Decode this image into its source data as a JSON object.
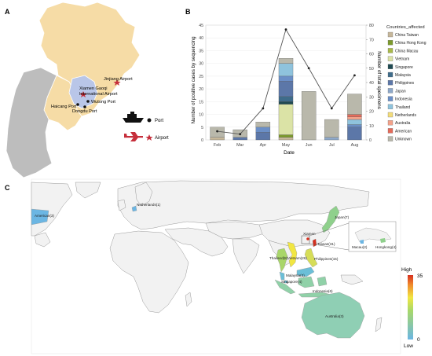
{
  "panel_labels": {
    "a": "A",
    "b": "B",
    "c": "C"
  },
  "panel_a": {
    "places": [
      "Jinjiang Airport",
      "Xiamen Gaoqi",
      "International Airport",
      "Haicang Port",
      "Wutong Port",
      "Dongdu Port"
    ],
    "legend": {
      "port": "Port",
      "airport": "Airport"
    },
    "colors": {
      "mainland": "#f6dca6",
      "xiamen": "#b9c6e8",
      "neighbor": "#bdbdbd"
    }
  },
  "chart_data": {
    "type": "bar",
    "categories": [
      "Feb",
      "Mar",
      "Apr",
      "May",
      "Jun",
      "Jul",
      "Aug"
    ],
    "xlabel": "Date",
    "ylabel": "Number of positive cases by sequencing",
    "y2label": "Number of total specimens",
    "ylim": [
      0,
      45
    ],
    "y2lim": [
      0,
      80
    ],
    "yticks": [
      0,
      5,
      10,
      15,
      20,
      25,
      30,
      35,
      40,
      45
    ],
    "y2ticks": [
      0,
      10,
      20,
      30,
      40,
      50,
      60,
      70,
      80
    ],
    "legend_title": "Countries_affected",
    "legend_position": "right",
    "series": [
      {
        "name": "China Taiwan",
        "color": "#c6b79a",
        "values": [
          1,
          0,
          0,
          1,
          0,
          0,
          0
        ]
      },
      {
        "name": "China Hong Kong",
        "color": "#7c9a2c",
        "values": [
          0,
          0,
          0,
          1,
          0,
          0,
          0
        ]
      },
      {
        "name": "China Macau",
        "color": "#a9b94a",
        "values": [
          0,
          0,
          0,
          0,
          0,
          0,
          0
        ]
      },
      {
        "name": "Vietnam",
        "color": "#dbe3a6",
        "values": [
          0,
          0,
          0,
          12,
          0,
          0,
          0
        ]
      },
      {
        "name": "Singapore",
        "color": "#1f4a52",
        "values": [
          0,
          0,
          0,
          1,
          0,
          0,
          0
        ]
      },
      {
        "name": "Malaysia",
        "color": "#3f6c8a",
        "values": [
          0,
          0,
          0,
          2,
          0,
          0,
          0
        ]
      },
      {
        "name": "Philippines",
        "color": "#5c77a8",
        "values": [
          0,
          1,
          3,
          6,
          0,
          0,
          5
        ]
      },
      {
        "name": "Japan",
        "color": "#8ea8c9",
        "values": [
          0,
          0,
          0,
          0,
          0,
          1,
          0
        ]
      },
      {
        "name": "Indonesia",
        "color": "#6b8fc7",
        "values": [
          0,
          0,
          2,
          2,
          0,
          0,
          1
        ]
      },
      {
        "name": "Thailand",
        "color": "#8fc3dd",
        "values": [
          0,
          0,
          0,
          5,
          0,
          0,
          2
        ]
      },
      {
        "name": "Netherlands",
        "color": "#f3dc7a",
        "values": [
          0,
          0,
          0,
          0,
          0,
          0,
          0
        ]
      },
      {
        "name": "Australia",
        "color": "#f3a28a",
        "values": [
          0,
          0,
          0,
          0,
          0,
          0,
          1
        ]
      },
      {
        "name": "American",
        "color": "#e46b5a",
        "values": [
          0,
          0,
          0,
          0,
          0,
          0,
          1
        ]
      },
      {
        "name": "Unknown",
        "color": "#b9b8ab",
        "values": [
          4,
          3,
          2,
          2,
          19,
          7,
          8
        ]
      }
    ],
    "total_specimens": [
      6,
      4,
      22,
      77,
      50,
      22,
      45
    ],
    "line_color": "#555555"
  },
  "panel_c": {
    "countries": [
      {
        "label": "Netherlands(1)"
      },
      {
        "label": "American(3)"
      },
      {
        "label": "Japan(7)"
      },
      {
        "label": "Xiamen"
      },
      {
        "label": "Taiwan(31)"
      },
      {
        "label": "Macau(2)"
      },
      {
        "label": "Hongkong(4)"
      },
      {
        "label": "Thailand(8)"
      },
      {
        "label": "Vietnam(26)"
      },
      {
        "label": "Philippines(15)"
      },
      {
        "label": "Malaysia(3)"
      },
      {
        "label": "Singapore(4)"
      },
      {
        "label": "Indonesia(6)"
      },
      {
        "label": "Australia(3)"
      }
    ],
    "scale": {
      "high_label": "High",
      "low_label": "Low",
      "max": "35",
      "min": "0"
    },
    "colors": {
      "high": "#d7301f",
      "mid": "#f1e642",
      "low": "#6bb6e3",
      "land": "#f2f2f2",
      "border": "#9a9a9a",
      "ocean": "#ffffff"
    }
  }
}
